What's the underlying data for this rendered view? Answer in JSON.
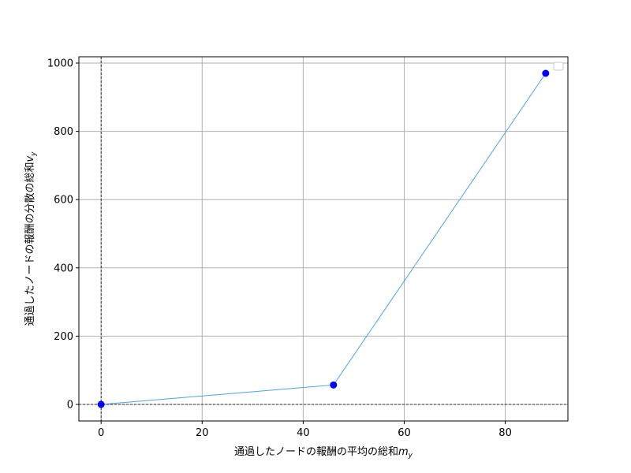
{
  "chart_data": {
    "type": "line",
    "x": [
      0,
      46,
      88
    ],
    "series": [
      {
        "values": [
          0,
          57,
          970
        ],
        "line_color": "#4da3e8",
        "marker_color": "#0000ff"
      }
    ],
    "xlabel_main": "通過したノードの報酬の平均の総和",
    "xlabel_var": "m",
    "xlabel_sub": "y",
    "ylabel_main": "通過したノードの報酬の分散の総和",
    "ylabel_var": "v",
    "ylabel_sub": "y",
    "xlim": [
      -4.4,
      92.4
    ],
    "ylim": [
      -48.5,
      1018.5
    ],
    "xticks": [
      0,
      20,
      40,
      60,
      80
    ],
    "yticks": [
      0,
      200,
      400,
      600,
      800,
      1000
    ],
    "xtick_labels": [
      "0",
      "20",
      "40",
      "60",
      "80"
    ],
    "ytick_labels": [
      "0",
      "200",
      "400",
      "600",
      "800",
      "1000"
    ],
    "grid": true,
    "reference_lines": {
      "x": 0,
      "y": 0
    },
    "legend": "top-right (empty)"
  }
}
